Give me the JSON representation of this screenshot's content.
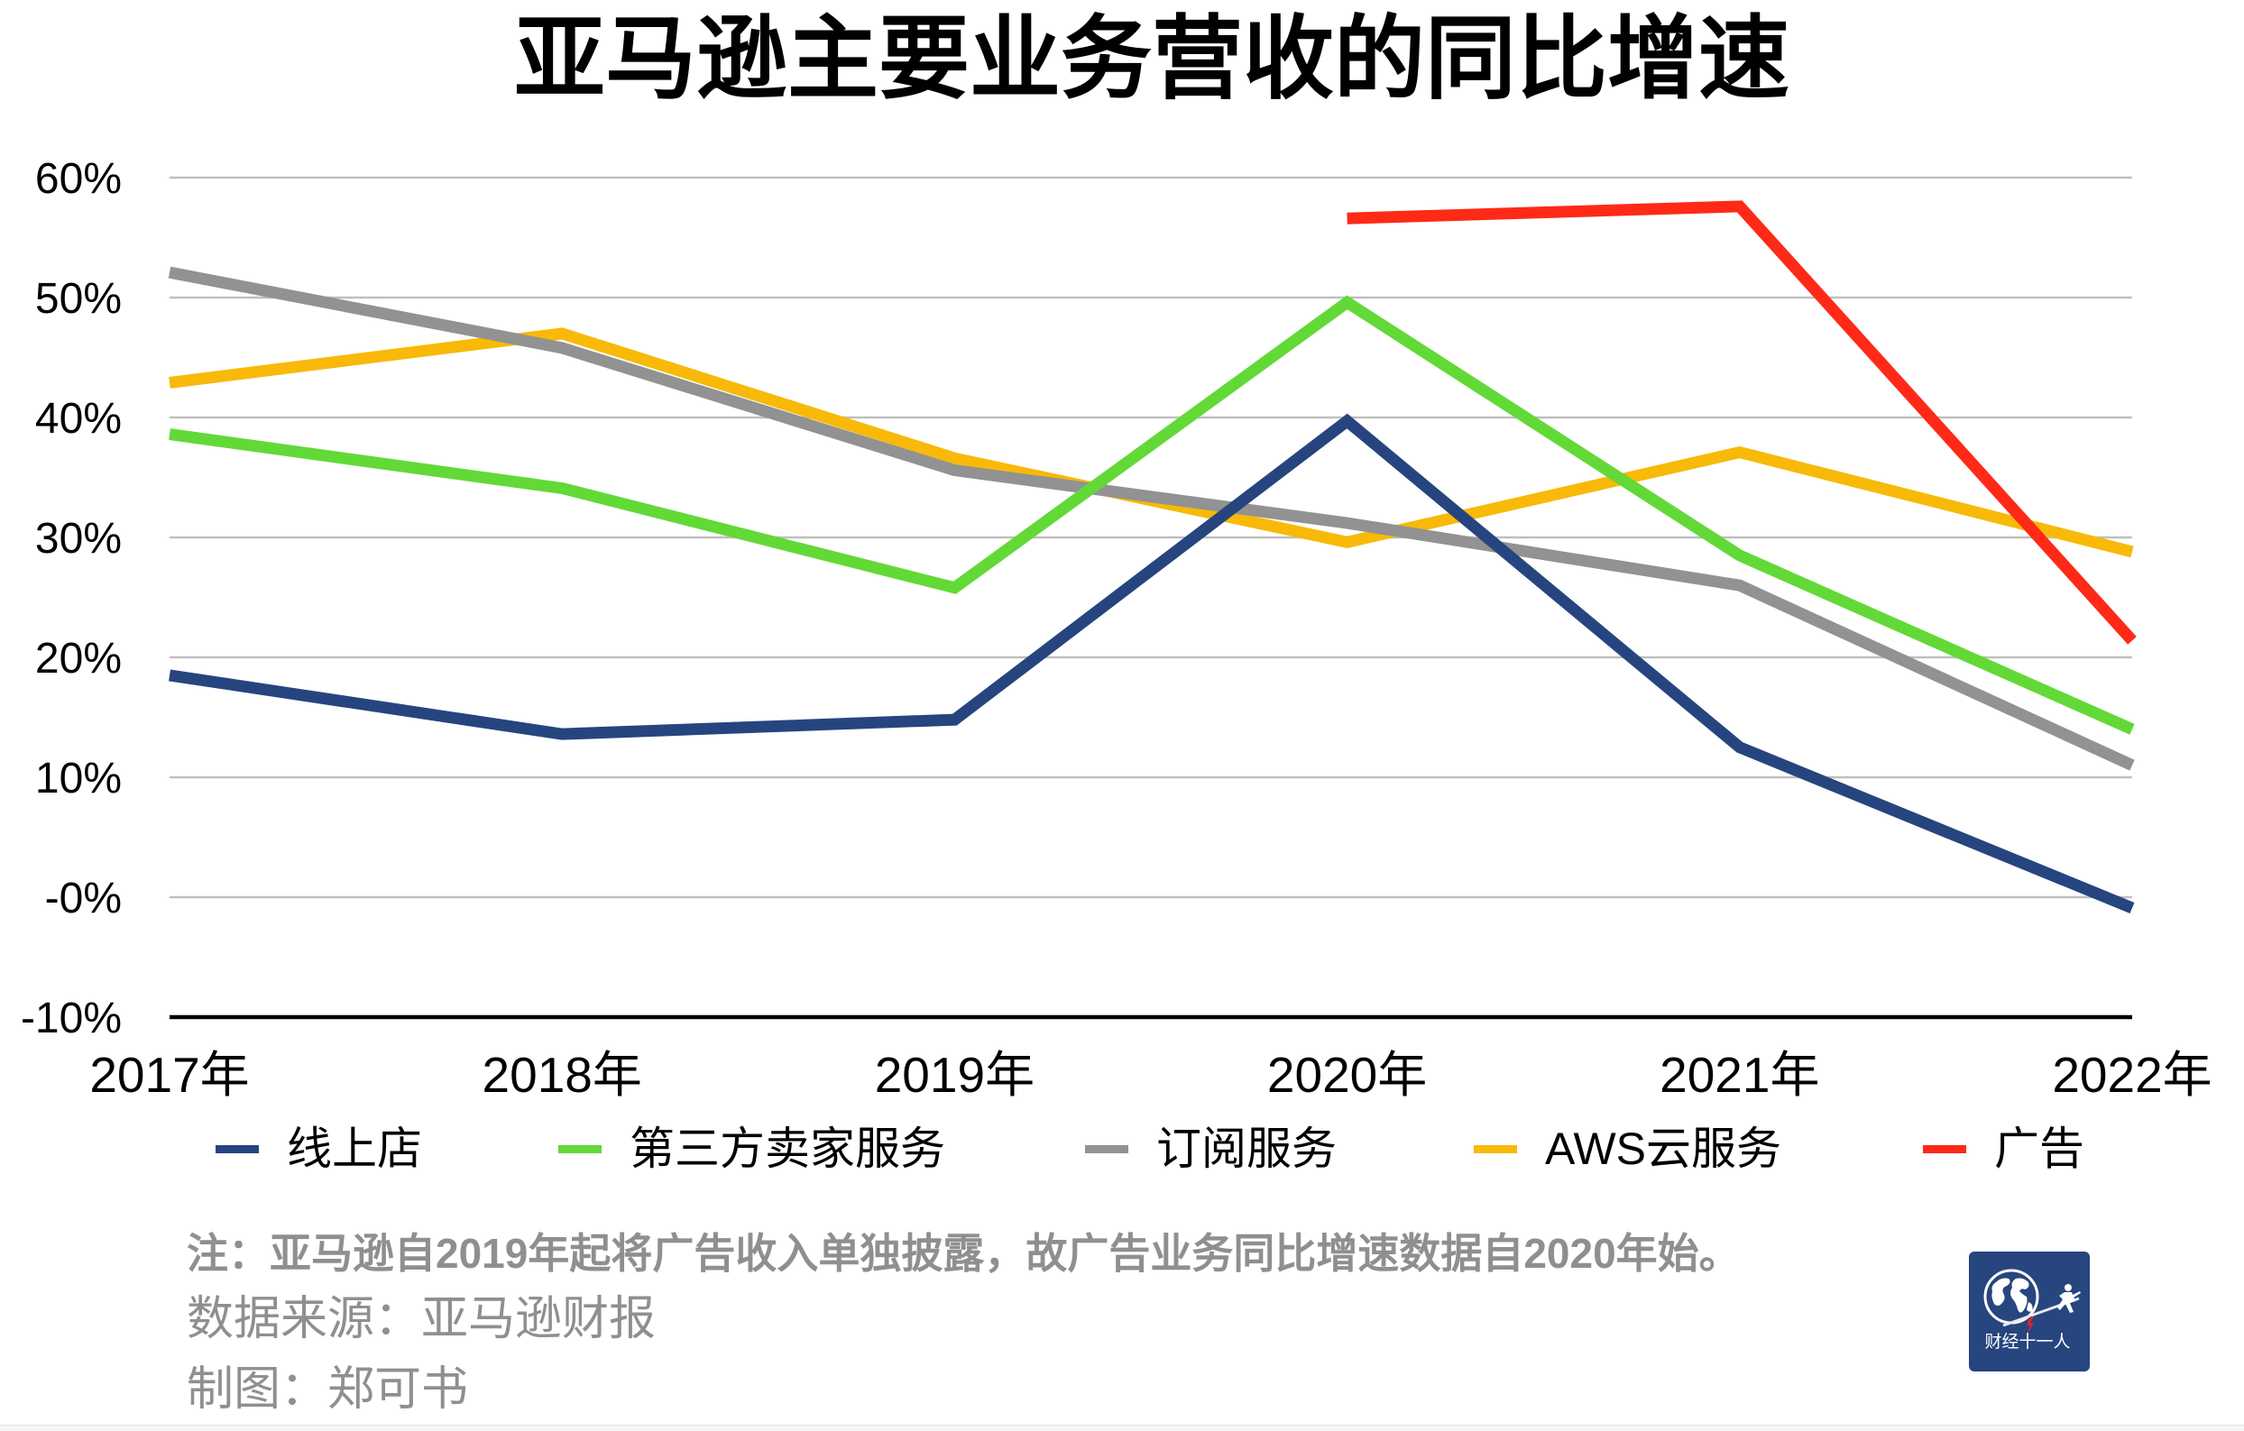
{
  "chart_data": {
    "type": "line",
    "title": "亚马逊主要业务营收的同比增速",
    "xlabel": "",
    "ylabel": "",
    "categories": [
      "2017年",
      "2018年",
      "2019年",
      "2020年",
      "2021年",
      "2022年"
    ],
    "ytick_values": [
      60,
      50,
      40,
      30,
      20,
      10,
      0,
      -10
    ],
    "yticks": [
      "60%",
      "50%",
      "40%",
      "30%",
      "20%",
      "10%",
      "-0%",
      "-10%"
    ],
    "ylim": [
      -10,
      60
    ],
    "unit": "%",
    "grid": true,
    "legend_position": "bottom",
    "series": [
      {
        "name": "线上店",
        "color": "#26457f",
        "values": [
          18.5,
          13.6,
          14.8,
          39.7,
          12.5,
          -0.9
        ]
      },
      {
        "name": "第三方卖家服务",
        "color": "#62d937",
        "values": [
          38.6,
          34.1,
          25.8,
          49.6,
          28.5,
          14.0
        ]
      },
      {
        "name": "订阅服务",
        "color": "#929292",
        "values": [
          52.1,
          45.8,
          35.6,
          31.2,
          26.0,
          11.0
        ]
      },
      {
        "name": "AWS云服务",
        "color": "#f8b908",
        "values": [
          42.9,
          47.0,
          36.6,
          29.6,
          37.1,
          28.8
        ]
      },
      {
        "name": "广告",
        "color": "#fe2a17",
        "values": [
          null,
          null,
          null,
          56.6,
          57.6,
          21.4
        ]
      }
    ]
  },
  "notes": {
    "note": "注：亚马逊自2019年起将广告收入单独披露，故广告业务同比增速数据自2020年始。",
    "source": "数据来源：亚马逊财报",
    "credit": "制图：郑可书"
  },
  "logo": {
    "text": "财经十一人",
    "icon": "globe-lever-runner-icon"
  },
  "colors": {
    "gridline": "#bfbfbf",
    "axis": "#000000",
    "note_text": "#8f8f8f",
    "logo_bg": "#27457f"
  }
}
